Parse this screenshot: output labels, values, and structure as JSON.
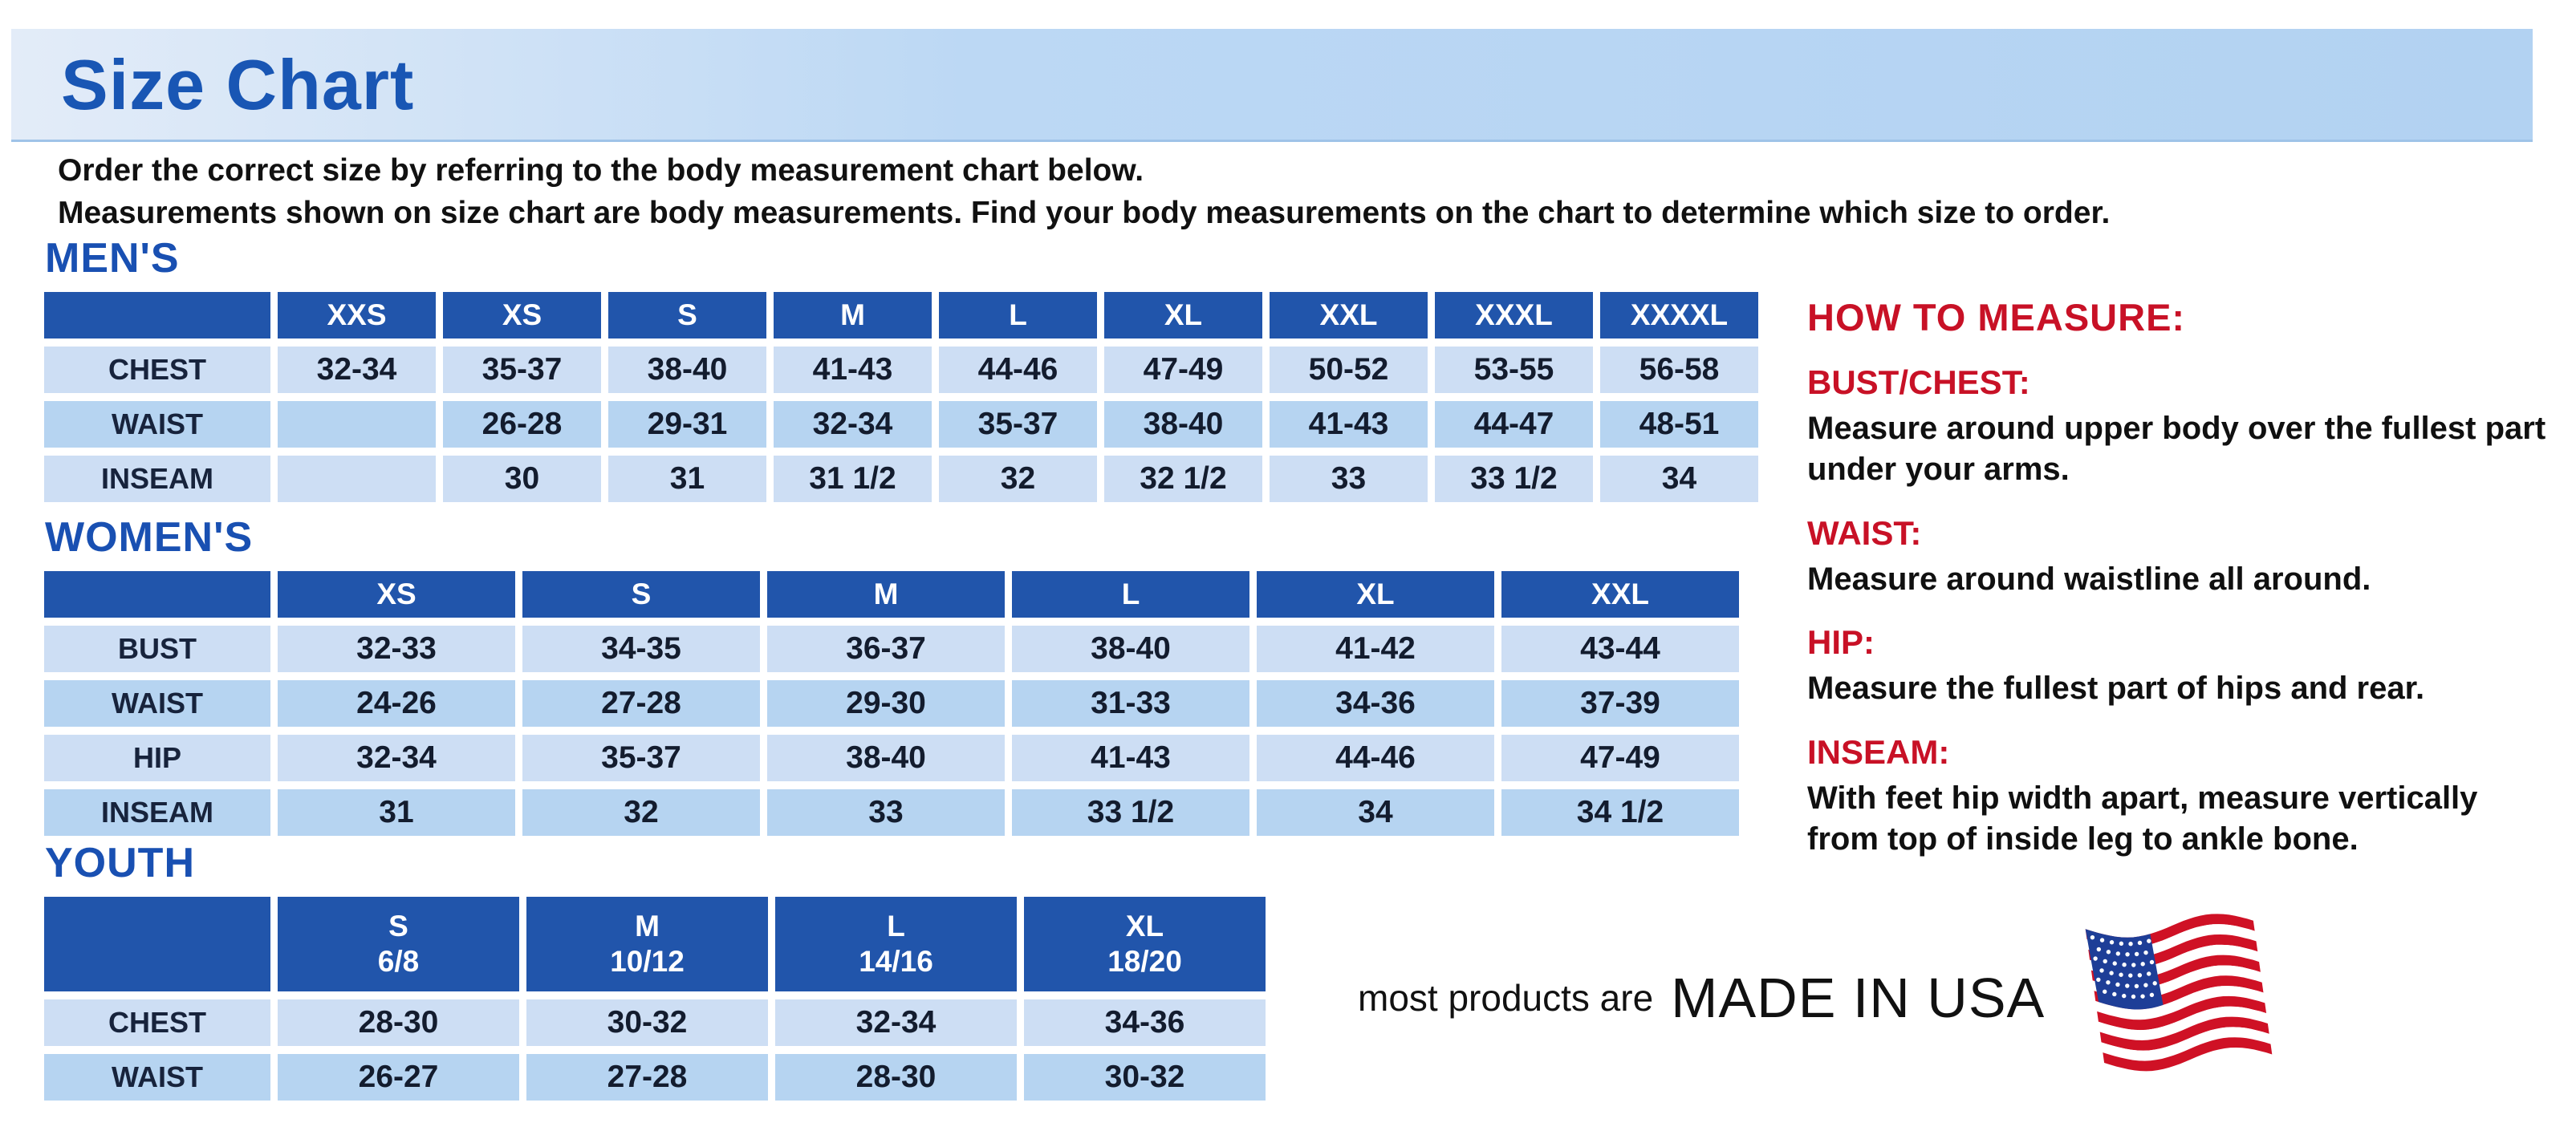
{
  "colors": {
    "band_blue": "#b7d5f3",
    "title_blue": "#1956b4",
    "section_blue": "#1950b2",
    "table_header_blue": "#2155ab",
    "cell_light_blue": "#cddef4",
    "cell_mid_blue": "#b6d4f1",
    "heading_red": "#c81126",
    "text_black": "#111111",
    "flag_red": "#cf1125",
    "flag_blue": "#1e3e97"
  },
  "header": {
    "title": "Size Chart"
  },
  "intro": {
    "line1": "Order the correct size by referring to the body measurement chart below.",
    "line2": "Measurements shown on size chart are body measurements.  Find your body measurements on the chart to determine which size to order."
  },
  "tables": {
    "mens": {
      "section_title": "MEN'S",
      "columns": [
        "XXS",
        "XS",
        "S",
        "M",
        "L",
        "XL",
        "XXL",
        "XXXL",
        "XXXXL"
      ],
      "rows": [
        {
          "label": "CHEST",
          "values": [
            "32-34",
            "35-37",
            "38-40",
            "41-43",
            "44-46",
            "47-49",
            "50-52",
            "53-55",
            "56-58"
          ]
        },
        {
          "label": "WAIST",
          "values": [
            "",
            "26-28",
            "29-31",
            "32-34",
            "35-37",
            "38-40",
            "41-43",
            "44-47",
            "48-51"
          ]
        },
        {
          "label": "INSEAM",
          "values": [
            "",
            "30",
            "31",
            "31 1/2",
            "32",
            "32 1/2",
            "33",
            "33 1/2",
            "34"
          ]
        }
      ]
    },
    "womens": {
      "section_title": "WOMEN'S",
      "columns": [
        "XS",
        "S",
        "M",
        "L",
        "XL",
        "XXL"
      ],
      "rows": [
        {
          "label": "BUST",
          "values": [
            "32-33",
            "34-35",
            "36-37",
            "38-40",
            "41-42",
            "43-44"
          ]
        },
        {
          "label": "WAIST",
          "values": [
            "24-26",
            "27-28",
            "29-30",
            "31-33",
            "34-36",
            "37-39"
          ]
        },
        {
          "label": "HIP",
          "values": [
            "32-34",
            "35-37",
            "38-40",
            "41-43",
            "44-46",
            "47-49"
          ]
        },
        {
          "label": "INSEAM",
          "values": [
            "31",
            "32",
            "33",
            "33 1/2",
            "34",
            "34 1/2"
          ]
        }
      ]
    },
    "youth": {
      "section_title": "YOUTH",
      "columns": [
        [
          "S",
          "6/8"
        ],
        [
          "M",
          "10/12"
        ],
        [
          "L",
          "14/16"
        ],
        [
          "XL",
          "18/20"
        ]
      ],
      "rows": [
        {
          "label": "CHEST",
          "values": [
            "28-30",
            "30-32",
            "32-34",
            "34-36"
          ]
        },
        {
          "label": "WAIST",
          "values": [
            "26-27",
            "27-28",
            "28-30",
            "30-32"
          ]
        }
      ]
    }
  },
  "how_to_measure": {
    "title": "HOW TO MEASURE:",
    "items": [
      {
        "label": "BUST/CHEST:",
        "text": "Measure around upper body over the fullest part under your arms."
      },
      {
        "label": "WAIST:",
        "text": "Measure around waistline all around."
      },
      {
        "label": "HIP:",
        "text": "Measure the fullest part of hips and rear."
      },
      {
        "label": "INSEAM:",
        "text": "With feet hip width apart, measure vertically from top of inside leg to ankle bone."
      }
    ]
  },
  "footer": {
    "prefix": "most products are",
    "made_in": "MADE IN USA",
    "flag_icon": "us-flag-icon"
  }
}
